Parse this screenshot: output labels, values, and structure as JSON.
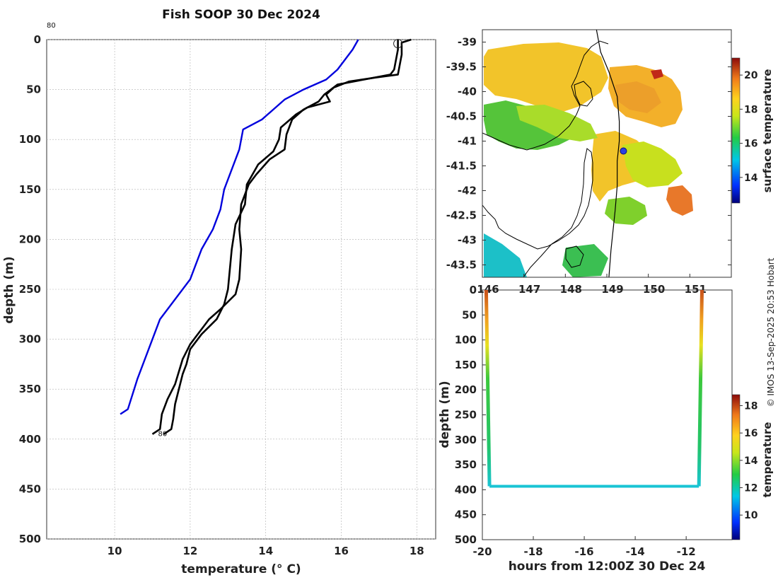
{
  "title": "Fish SOOP 30 Dec 2024",
  "copyright": "© IMOS 13-Sep-2025 20:53 Hobart",
  "chart_data": [
    {
      "type": "line",
      "name": "profile",
      "xlabel": "temperature (° C)",
      "ylabel": "depth (m)",
      "xlim": [
        8.2,
        18.5
      ],
      "ylim": [
        500,
        0
      ],
      "xticks": [
        10,
        12,
        14,
        16,
        18
      ],
      "yticks": [
        0,
        50,
        100,
        150,
        200,
        250,
        300,
        350,
        400,
        450,
        500
      ],
      "grid": true,
      "annotations": [
        {
          "text": "80",
          "x": 8.2,
          "y": -12
        },
        {
          "text": "80",
          "x": 11.15,
          "y": 394
        }
      ],
      "series": [
        {
          "name": "climatology",
          "color": "#0000dd",
          "points": [
            [
              16.45,
              0
            ],
            [
              16.3,
              10
            ],
            [
              16.1,
              20
            ],
            [
              15.9,
              30
            ],
            [
              15.6,
              40
            ],
            [
              15.0,
              50
            ],
            [
              14.5,
              60
            ],
            [
              14.2,
              70
            ],
            [
              13.9,
              80
            ],
            [
              13.4,
              90
            ],
            [
              13.3,
              110
            ],
            [
              13.1,
              130
            ],
            [
              12.9,
              150
            ],
            [
              12.8,
              170
            ],
            [
              12.6,
              190
            ],
            [
              12.3,
              210
            ],
            [
              12.0,
              240
            ],
            [
              11.6,
              260
            ],
            [
              11.2,
              280
            ],
            [
              10.9,
              310
            ],
            [
              10.6,
              340
            ],
            [
              10.35,
              370
            ],
            [
              10.15,
              375
            ]
          ]
        },
        {
          "name": "profile-1",
          "color": "#000000",
          "points": [
            [
              17.5,
              0
            ],
            [
              17.5,
              10
            ],
            [
              17.45,
              20
            ],
            [
              17.4,
              30
            ],
            [
              17.3,
              35
            ],
            [
              16.6,
              40
            ],
            [
              15.9,
              45
            ],
            [
              15.55,
              55
            ],
            [
              15.4,
              62
            ],
            [
              15.0,
              70
            ],
            [
              14.7,
              80
            ],
            [
              14.55,
              95
            ],
            [
              14.5,
              110
            ],
            [
              14.1,
              120
            ],
            [
              13.75,
              135
            ],
            [
              13.55,
              145
            ],
            [
              13.35,
              165
            ],
            [
              13.3,
              190
            ],
            [
              13.35,
              210
            ],
            [
              13.3,
              240
            ],
            [
              13.2,
              255
            ],
            [
              12.8,
              270
            ],
            [
              12.5,
              280
            ],
            [
              12.3,
              290
            ],
            [
              12.0,
              305
            ],
            [
              11.8,
              320
            ],
            [
              11.6,
              345
            ],
            [
              11.4,
              360
            ],
            [
              11.25,
              375
            ],
            [
              11.2,
              390
            ],
            [
              11.0,
              395
            ]
          ]
        },
        {
          "name": "profile-2",
          "color": "#000000",
          "points": [
            [
              17.85,
              0
            ],
            [
              17.6,
              3
            ],
            [
              17.6,
              15
            ],
            [
              17.55,
              25
            ],
            [
              17.5,
              35
            ],
            [
              16.9,
              38
            ],
            [
              16.2,
              42
            ],
            [
              15.8,
              48
            ],
            [
              15.6,
              55
            ],
            [
              15.7,
              62
            ],
            [
              15.1,
              68
            ],
            [
              14.8,
              75
            ],
            [
              14.4,
              88
            ],
            [
              14.35,
              100
            ],
            [
              14.2,
              112
            ],
            [
              13.8,
              125
            ],
            [
              13.5,
              145
            ],
            [
              13.45,
              165
            ],
            [
              13.2,
              185
            ],
            [
              13.1,
              210
            ],
            [
              13.05,
              230
            ],
            [
              13.0,
              250
            ],
            [
              12.9,
              265
            ],
            [
              12.7,
              280
            ],
            [
              12.3,
              295
            ],
            [
              12.0,
              310
            ],
            [
              11.9,
              325
            ],
            [
              11.8,
              335
            ],
            [
              11.7,
              350
            ],
            [
              11.6,
              365
            ],
            [
              11.55,
              380
            ],
            [
              11.5,
              390
            ],
            [
              11.3,
              395
            ]
          ]
        }
      ],
      "markers": [
        {
          "name": "surface-start",
          "temperature": 17.5,
          "depth": 4,
          "style": "open-circle"
        }
      ]
    },
    {
      "type": "heatmap",
      "name": "sst-map",
      "xlim": [
        146.0,
        152.0
      ],
      "ylim": [
        -43.75,
        -38.75
      ],
      "xticks": [
        146,
        147,
        148,
        149,
        150,
        151
      ],
      "yticks": [
        -39,
        -39.5,
        -40,
        -40.5,
        -41,
        -41.5,
        -42,
        -42.5,
        -43,
        -43.5
      ],
      "ship_position": {
        "lon": 149.4,
        "lat": -41.2
      },
      "track": [
        [
          148.75,
          -38.75
        ],
        [
          148.85,
          -39.2
        ],
        [
          149.05,
          -39.6
        ],
        [
          149.25,
          -40.1
        ],
        [
          149.3,
          -40.6
        ],
        [
          149.3,
          -41.0
        ],
        [
          149.25,
          -41.4
        ],
        [
          149.25,
          -41.9
        ],
        [
          149.2,
          -42.4
        ],
        [
          149.15,
          -42.8
        ],
        [
          149.1,
          -43.2
        ],
        [
          149.05,
          -43.75
        ]
      ],
      "colorbar": {
        "label": "surface temperature",
        "min": 12.5,
        "max": 21,
        "ticks": [
          14,
          16,
          18,
          20
        ]
      }
    },
    {
      "type": "scatter",
      "name": "time-depth",
      "xlabel": "hours from 12:00Z 30 Dec 24",
      "ylabel": "depth (m)",
      "xlim": [
        -20,
        -10.2
      ],
      "ylim": [
        500,
        0
      ],
      "xticks": [
        -20,
        -18,
        -16,
        -14,
        -12
      ],
      "yticks": [
        0,
        50,
        100,
        150,
        200,
        250,
        300,
        350,
        400,
        450,
        500
      ],
      "track": [
        [
          -19.85,
          0
        ],
        [
          -19.72,
          393
        ],
        [
          -11.5,
          393
        ],
        [
          -11.38,
          0
        ]
      ],
      "colorbar": {
        "label": "temperature",
        "min": 8.2,
        "max": 18.8,
        "ticks": [
          10,
          12,
          14,
          16,
          18
        ]
      }
    }
  ]
}
